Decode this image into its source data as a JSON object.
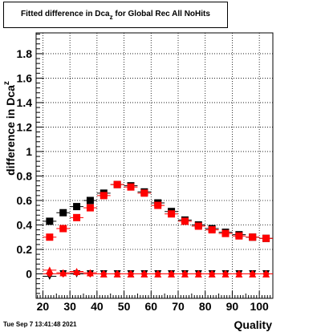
{
  "title": {
    "main": "Fitted difference in Dca",
    "subscript": "z",
    "suffix": " for Global Rec All NoHits"
  },
  "timestamp": "Tue Sep  7 13:41:48 2021",
  "chart_data": {
    "type": "scatter",
    "xlabel": "Quality",
    "ylabel": "difference in Dca",
    "ylabel_subscript": "z",
    "xlim": [
      17.5,
      105
    ],
    "ylim": [
      -0.2,
      1.97
    ],
    "x_ticks": [
      20,
      30,
      40,
      50,
      60,
      70,
      80,
      90,
      100
    ],
    "x_tick_labels": [
      "20",
      "30",
      "40",
      "50",
      "60",
      "70",
      "80",
      "90",
      "100"
    ],
    "y_ticks": [
      0,
      0.2,
      0.4,
      0.6,
      0.8,
      1,
      1.2,
      1.4,
      1.6,
      1.8
    ],
    "y_tick_labels": [
      "0",
      "0.2",
      "0.4",
      "0.6",
      "0.8",
      "1",
      "1.2",
      "1.4",
      "1.6",
      "1.8"
    ],
    "grid": true,
    "legend": "none",
    "x_error": 2.5,
    "series": [
      {
        "marker": "square",
        "color": "#000000",
        "points": [
          [
            22.5,
            0.43
          ],
          [
            27.5,
            0.5
          ],
          [
            32.5,
            0.55
          ],
          [
            37.5,
            0.6
          ],
          [
            42.5,
            0.66
          ],
          [
            47.5,
            0.73
          ],
          [
            52.5,
            0.72
          ],
          [
            57.5,
            0.67
          ],
          [
            62.5,
            0.58
          ],
          [
            67.5,
            0.51
          ],
          [
            72.5,
            0.44
          ],
          [
            77.5,
            0.4
          ],
          [
            82.5,
            0.37
          ],
          [
            87.5,
            0.34
          ],
          [
            92.5,
            0.32
          ],
          [
            97.5,
            0.3
          ],
          [
            102.5,
            0.29
          ]
        ]
      },
      {
        "marker": "square",
        "color": "#ff0000",
        "points": [
          [
            22.5,
            0.3
          ],
          [
            27.5,
            0.37
          ],
          [
            32.5,
            0.46
          ],
          [
            37.5,
            0.54
          ],
          [
            42.5,
            0.64
          ],
          [
            47.5,
            0.73
          ],
          [
            52.5,
            0.71
          ],
          [
            57.5,
            0.66
          ],
          [
            62.5,
            0.56
          ],
          [
            67.5,
            0.49
          ],
          [
            72.5,
            0.43
          ],
          [
            77.5,
            0.39
          ],
          [
            82.5,
            0.36
          ],
          [
            87.5,
            0.33
          ],
          [
            92.5,
            0.31
          ],
          [
            97.5,
            0.3
          ],
          [
            102.5,
            0.29
          ]
        ]
      },
      {
        "marker": "triangle-down",
        "color": "#000000",
        "points": [
          [
            22.5,
            -0.02
          ],
          [
            27.5,
            0.0
          ],
          [
            32.5,
            0.0
          ],
          [
            37.5,
            0.0
          ],
          [
            42.5,
            0.0
          ],
          [
            47.5,
            0.0
          ],
          [
            52.5,
            0.0
          ],
          [
            57.5,
            0.0
          ],
          [
            62.5,
            0.0
          ],
          [
            67.5,
            0.0
          ],
          [
            72.5,
            0.0
          ],
          [
            77.5,
            0.0
          ],
          [
            82.5,
            0.0
          ],
          [
            87.5,
            0.0
          ],
          [
            92.5,
            0.0
          ],
          [
            97.5,
            0.0
          ],
          [
            102.5,
            0.0
          ]
        ]
      },
      {
        "marker": "triangle-up",
        "color": "#ff0000",
        "points": [
          [
            22.5,
            0.03
          ],
          [
            27.5,
            0.01
          ],
          [
            32.5,
            0.02
          ],
          [
            37.5,
            0.01
          ],
          [
            42.5,
            0.0
          ],
          [
            47.5,
            0.0
          ],
          [
            52.5,
            0.0
          ],
          [
            57.5,
            0.0
          ],
          [
            62.5,
            0.0
          ],
          [
            67.5,
            0.0
          ],
          [
            72.5,
            0.0
          ],
          [
            77.5,
            0.0
          ],
          [
            82.5,
            0.0
          ],
          [
            87.5,
            0.0
          ],
          [
            92.5,
            0.0
          ],
          [
            97.5,
            0.0
          ],
          [
            102.5,
            0.0
          ]
        ]
      },
      {
        "marker": "diamond",
        "color": "#ff0000",
        "points": [
          [
            22.5,
            0.0
          ],
          [
            27.5,
            0.0
          ],
          [
            32.5,
            0.01
          ],
          [
            37.5,
            0.0
          ],
          [
            42.5,
            0.0
          ],
          [
            47.5,
            0.0
          ],
          [
            52.5,
            0.0
          ],
          [
            57.5,
            0.0
          ],
          [
            62.5,
            0.0
          ],
          [
            67.5,
            0.0
          ],
          [
            72.5,
            0.0
          ],
          [
            77.5,
            0.0
          ],
          [
            82.5,
            0.0
          ],
          [
            87.5,
            0.0
          ],
          [
            92.5,
            0.0
          ],
          [
            97.5,
            0.0
          ],
          [
            102.5,
            0.0
          ]
        ]
      }
    ]
  }
}
